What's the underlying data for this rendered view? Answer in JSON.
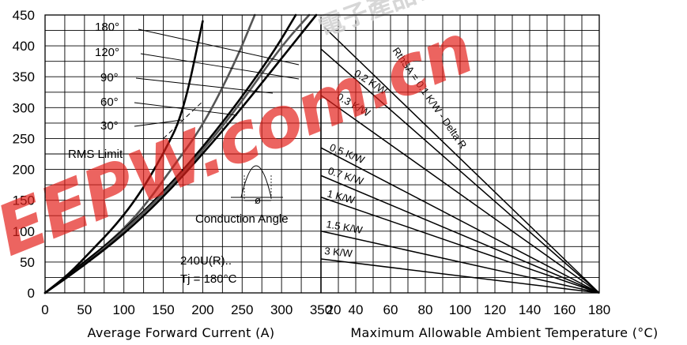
{
  "colors": {
    "curve_dark": "#000000",
    "curve_gray": "#555555",
    "watermark_red": "#e3211c"
  },
  "chart_data": [
    {
      "type": "line",
      "panel": "left",
      "xlabel": "Average Forward Current (A)",
      "ylabel": "",
      "xlim": [
        0,
        350
      ],
      "ylim": [
        0,
        450
      ],
      "x_ticks": [
        "0",
        "50",
        "100",
        "150",
        "200",
        "250",
        "300",
        "350"
      ],
      "y_ticks": [
        "0",
        "50",
        "100",
        "150",
        "200",
        "250",
        "300",
        "350",
        "400",
        "450"
      ],
      "grid": true,
      "series": [
        {
          "name": "30°",
          "color": "#000000",
          "x": [
            0,
            30,
            60,
            90,
            120,
            150,
            175,
            200
          ],
          "y": [
            0,
            30,
            70,
            110,
            160,
            225,
            290,
            440
          ]
        },
        {
          "name": "60°",
          "color": "#555555",
          "x": [
            0,
            40,
            80,
            120,
            160,
            200,
            240,
            266
          ],
          "y": [
            0,
            40,
            80,
            130,
            200,
            270,
            370,
            450
          ]
        },
        {
          "name": "90°",
          "color": "#000000",
          "x": [
            0,
            40,
            90,
            140,
            190,
            240,
            290,
            318
          ],
          "y": [
            0,
            40,
            90,
            150,
            220,
            300,
            390,
            450
          ]
        },
        {
          "name": "120°",
          "color": "#555555",
          "x": [
            0,
            50,
            100,
            150,
            200,
            250,
            300,
            335
          ],
          "y": [
            0,
            45,
            100,
            160,
            230,
            310,
            400,
            450
          ]
        },
        {
          "name": "180°",
          "color": "#000000",
          "x": [
            0,
            50,
            100,
            150,
            200,
            250,
            300,
            344
          ],
          "y": [
            0,
            45,
            95,
            155,
            225,
            300,
            380,
            450
          ]
        }
      ],
      "rms_limit": {
        "x": [
          150,
          200
        ],
        "y": [
          250,
          310
        ]
      },
      "annotations": {
        "angles": [
          "180°",
          "120°",
          "90°",
          "60°",
          "30°"
        ],
        "rms": "RMS Limit",
        "conduction": "Conduction Angle",
        "phi": "ø",
        "device": "240U(R)..",
        "tj": "Tj = 180°C"
      }
    },
    {
      "type": "line",
      "panel": "right",
      "xlabel": "Maximum Allowable Ambient Temperature (°C)",
      "ylabel": "",
      "xlim": [
        20,
        180
      ],
      "ylim": [
        0,
        450
      ],
      "x_ticks": [
        "20",
        "40",
        "60",
        "80",
        "100",
        "120",
        "140",
        "160",
        "180"
      ],
      "grid": true,
      "series": [
        {
          "name": "RthSA = 0.1 K/W - Delta R",
          "x": [
            22,
            180
          ],
          "y": [
            430,
            0
          ]
        },
        {
          "name": "0.2 K/W",
          "x": [
            20,
            180
          ],
          "y": [
            395,
            0
          ]
        },
        {
          "name": "0.3 K/W",
          "x": [
            20,
            180
          ],
          "y": [
            320,
            0
          ]
        },
        {
          "name": "0.5 K/W",
          "x": [
            20,
            180
          ],
          "y": [
            235,
            0
          ]
        },
        {
          "name": "0.7 K/W",
          "x": [
            20,
            180
          ],
          "y": [
            190,
            0
          ]
        },
        {
          "name": "1 K/W",
          "x": [
            20,
            180
          ],
          "y": [
            155,
            0
          ]
        },
        {
          "name": "1.5 K/W",
          "x": [
            20,
            180
          ],
          "y": [
            100,
            0
          ]
        },
        {
          "name": "3 K/W",
          "x": [
            20,
            180
          ],
          "y": [
            55,
            0
          ]
        }
      ]
    }
  ],
  "watermark": {
    "text": "EEPW.com.cn",
    "cjk": "電子產品世界"
  }
}
